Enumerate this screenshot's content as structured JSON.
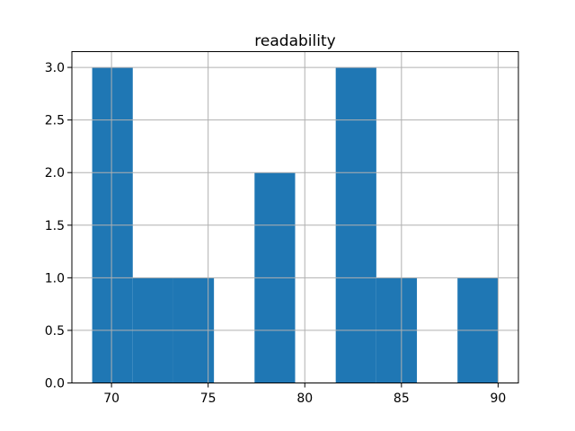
{
  "figure": {
    "background": "#ffffff"
  },
  "chart_data": {
    "type": "bar",
    "subtype": "histogram",
    "title": "readability",
    "xlabel": "",
    "ylabel": "",
    "bin_edges": [
      69.0,
      71.1,
      73.2,
      75.3,
      77.4,
      79.5,
      81.6,
      83.7,
      85.8,
      87.9,
      90.0
    ],
    "values": [
      3,
      1,
      1,
      0,
      2,
      0,
      3,
      1,
      0,
      1
    ],
    "xlim": [
      67.95,
      91.05
    ],
    "ylim": [
      0,
      3.15
    ],
    "x_ticks": [
      70,
      75,
      80,
      85,
      90
    ],
    "x_tick_labels": [
      "70",
      "75",
      "80",
      "85",
      "90"
    ],
    "y_ticks": [
      0.0,
      0.5,
      1.0,
      1.5,
      2.0,
      2.5,
      3.0
    ],
    "y_tick_labels": [
      "0.0",
      "0.5",
      "1.0",
      "1.5",
      "2.0",
      "2.5",
      "3.0"
    ],
    "grid": true,
    "grid_above_bars": true,
    "legend_position": "none",
    "bar_color": "#1f77b4",
    "grid_color": "#b0b0b0",
    "spine_color": "#000000",
    "text_color": "#000000"
  }
}
